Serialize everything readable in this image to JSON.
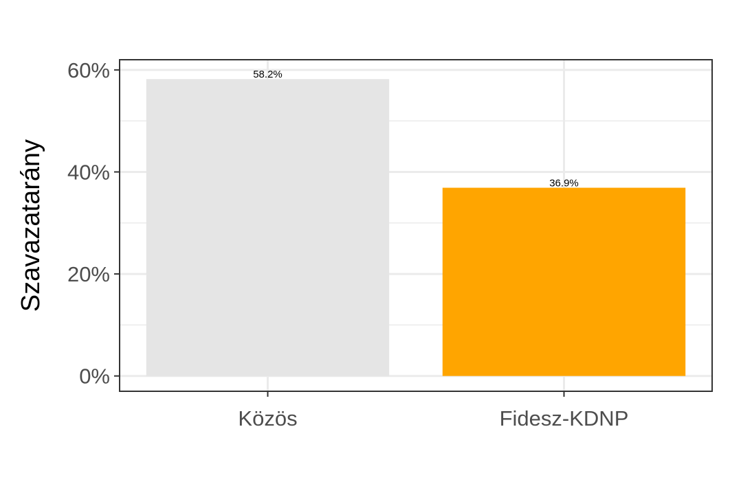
{
  "chart_data": {
    "type": "bar",
    "categories": [
      "Közös",
      "Fidesz-KDNP"
    ],
    "values": [
      58.2,
      36.9
    ],
    "data_labels": [
      "58.2%",
      "36.9%"
    ],
    "colors": [
      "#e5e5e5",
      "#ffa500"
    ],
    "ylabel": "Szavazatarány",
    "xlabel": "",
    "ylim": [
      -3,
      62
    ],
    "y_ticks": [
      0,
      20,
      40,
      60
    ],
    "y_tick_labels": [
      "0%",
      "20%",
      "40%",
      "60%"
    ],
    "y_minor_ticks": [
      10,
      30,
      50
    ],
    "grid": true,
    "legend": "none"
  },
  "style": {
    "panel_border_color": "#333333",
    "grid_color": "#ebebeb",
    "tick_color": "#333333",
    "tick_label_color": "#4d4d4d"
  }
}
